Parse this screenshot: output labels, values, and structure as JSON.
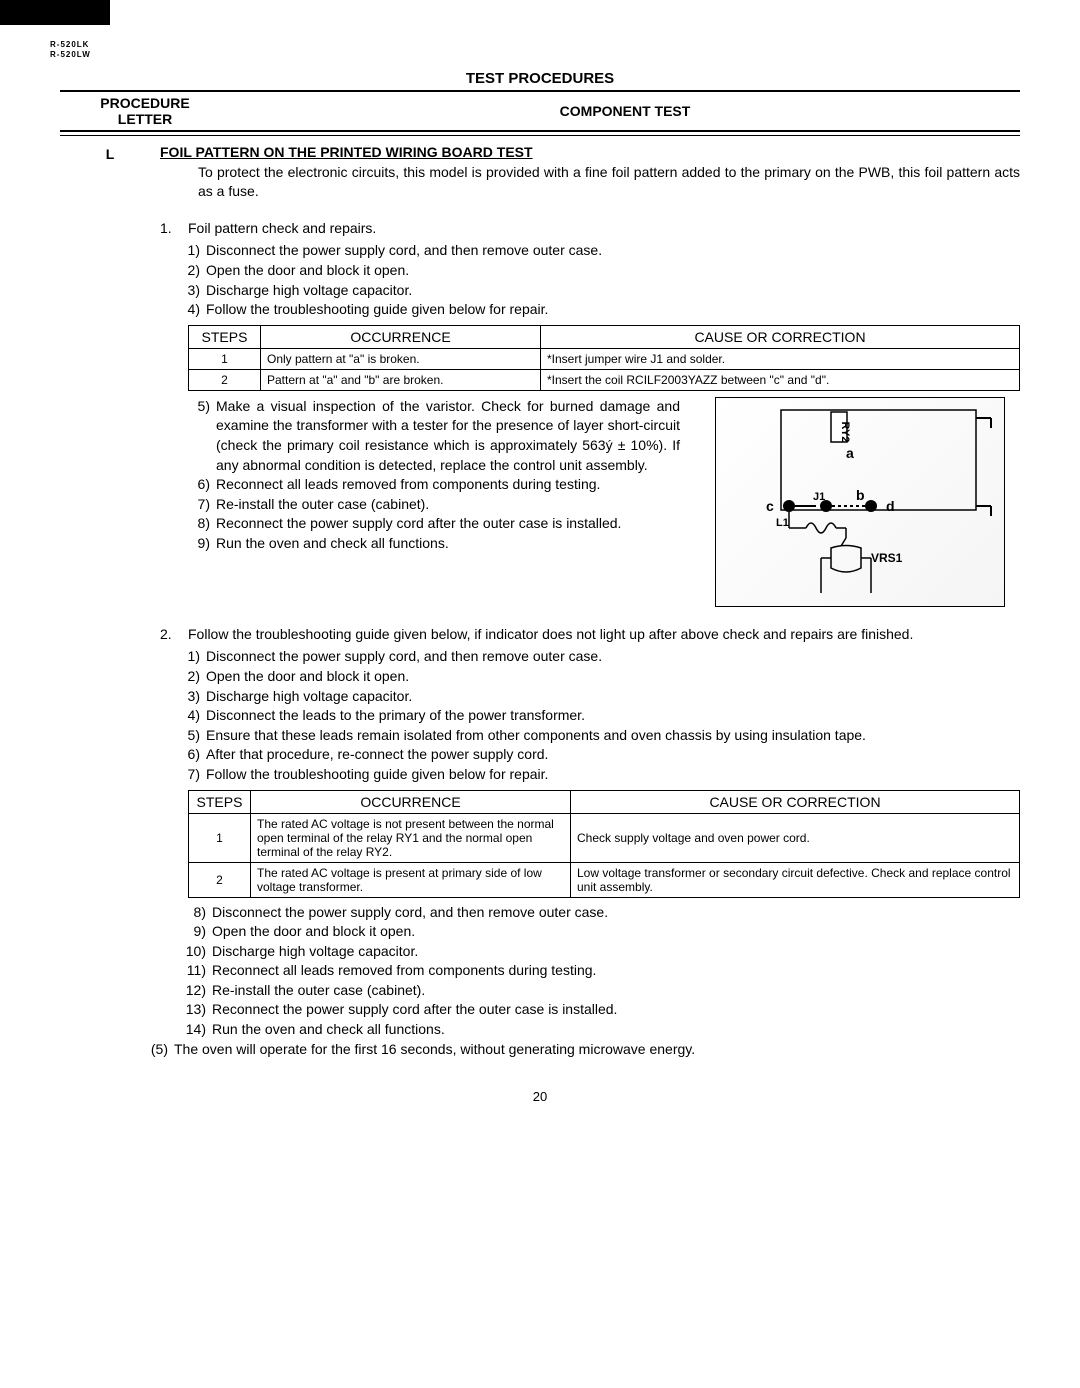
{
  "model": {
    "line1": "R-520LK",
    "line2": "R-520LW"
  },
  "section_title": "TEST PROCEDURES",
  "header": {
    "col1_line1": "PROCEDURE",
    "col1_line2": "LETTER",
    "col2": "COMPONENT TEST"
  },
  "procedure": {
    "letter": "L",
    "test_heading": "FOIL PATTERN ON THE PRINTED WIRING BOARD TEST",
    "intro": "To protect the electronic circuits, this model is provided with a fine foil pattern added to the primary on the PWB, this foil pattern acts as a fuse.",
    "block1": {
      "num": "1.",
      "title": "Foil pattern check and repairs.",
      "steps": [
        {
          "n": "1)",
          "t": "Disconnect the power supply cord, and then remove outer case."
        },
        {
          "n": "2)",
          "t": "Open the door and block it open."
        },
        {
          "n": "3)",
          "t": "Discharge high voltage capacitor."
        },
        {
          "n": "4)",
          "t": "Follow the troubleshooting guide given below for repair."
        }
      ],
      "table": {
        "headers": [
          "STEPS",
          "OCCURRENCE",
          "CAUSE OR CORRECTION"
        ],
        "col_widths": [
          "72px",
          "280px",
          "auto"
        ],
        "rows": [
          [
            "1",
            "Only pattern at \"a\" is broken.",
            "*Insert jumper wire J1 and solder."
          ],
          [
            "2",
            "Pattern at \"a\" and \"b\" are broken.",
            "*Insert the coil RCILF2003YAZZ between \"c\" and \"d\"."
          ]
        ]
      },
      "steps2": [
        {
          "n": "5)",
          "t": "Make a visual inspection of the varistor. Check for burned damage and examine the transformer with a tester for the presence of layer short-circuit (check the primary coil resistance which is approximately 563ý ± 10%). If any abnormal condition is detected, replace the control unit assembly."
        },
        {
          "n": "6)",
          "t": "Reconnect all leads removed from components during testing."
        },
        {
          "n": "7)",
          "t": "Re-install the outer case (cabinet)."
        },
        {
          "n": "8)",
          "t": "Reconnect the power supply cord after the outer case is installed."
        },
        {
          "n": "9)",
          "t": "Run the oven and check all functions."
        }
      ]
    },
    "diagram": {
      "labels": {
        "ry2": "RY2",
        "a": "a",
        "b": "b",
        "c": "c",
        "d": "d",
        "j1": "J1",
        "l1": "L1",
        "vrs1": "VRS1"
      }
    },
    "block2": {
      "num": "2.",
      "title": "Follow the troubleshooting guide given below, if indicator does not light up after above check and repairs are finished.",
      "steps": [
        {
          "n": "1)",
          "t": "Disconnect the power supply cord, and then remove outer case."
        },
        {
          "n": "2)",
          "t": "Open the door and block it open."
        },
        {
          "n": "3)",
          "t": "Discharge high voltage capacitor."
        },
        {
          "n": "4)",
          "t": "Disconnect the leads to the primary of the power transformer."
        },
        {
          "n": "5)",
          "t": "Ensure that these leads remain isolated from other components and oven chassis by using insulation tape."
        },
        {
          "n": "6)",
          "t": "After that procedure, re-connect the power supply cord."
        },
        {
          "n": "7)",
          "t": "Follow the troubleshooting guide given below for repair."
        }
      ],
      "table": {
        "headers": [
          "STEPS",
          "OCCURRENCE",
          "CAUSE OR CORRECTION"
        ],
        "col_widths": [
          "62px",
          "320px",
          "auto"
        ],
        "rows": [
          [
            "1",
            "The rated AC voltage is not present between the normal open terminal of the relay RY1 and the normal open terminal of the relay RY2.",
            "Check supply voltage and oven power cord."
          ],
          [
            "2",
            "The rated AC voltage is present at primary side of low voltage transformer.",
            "Low voltage transformer or secondary circuit defective. Check and replace control unit assembly."
          ]
        ]
      },
      "steps2": [
        {
          "n": "8)",
          "t": "Disconnect the power supply cord, and then remove outer case."
        },
        {
          "n": "9)",
          "t": "Open the door and block it open."
        },
        {
          "n": "10)",
          "t": "Discharge high voltage capacitor."
        },
        {
          "n": "11)",
          "t": "Reconnect all leads removed from components during testing."
        },
        {
          "n": "12)",
          "t": "Re-install the outer case (cabinet)."
        },
        {
          "n": "13)",
          "t": "Reconnect the power supply cord after the outer case is installed."
        },
        {
          "n": "14)",
          "t": "Run the oven and check all functions."
        }
      ],
      "final": {
        "n": "(5)",
        "t": "The oven will operate for the first 16 seconds, without generating microwave energy."
      }
    }
  },
  "page_number": "20"
}
